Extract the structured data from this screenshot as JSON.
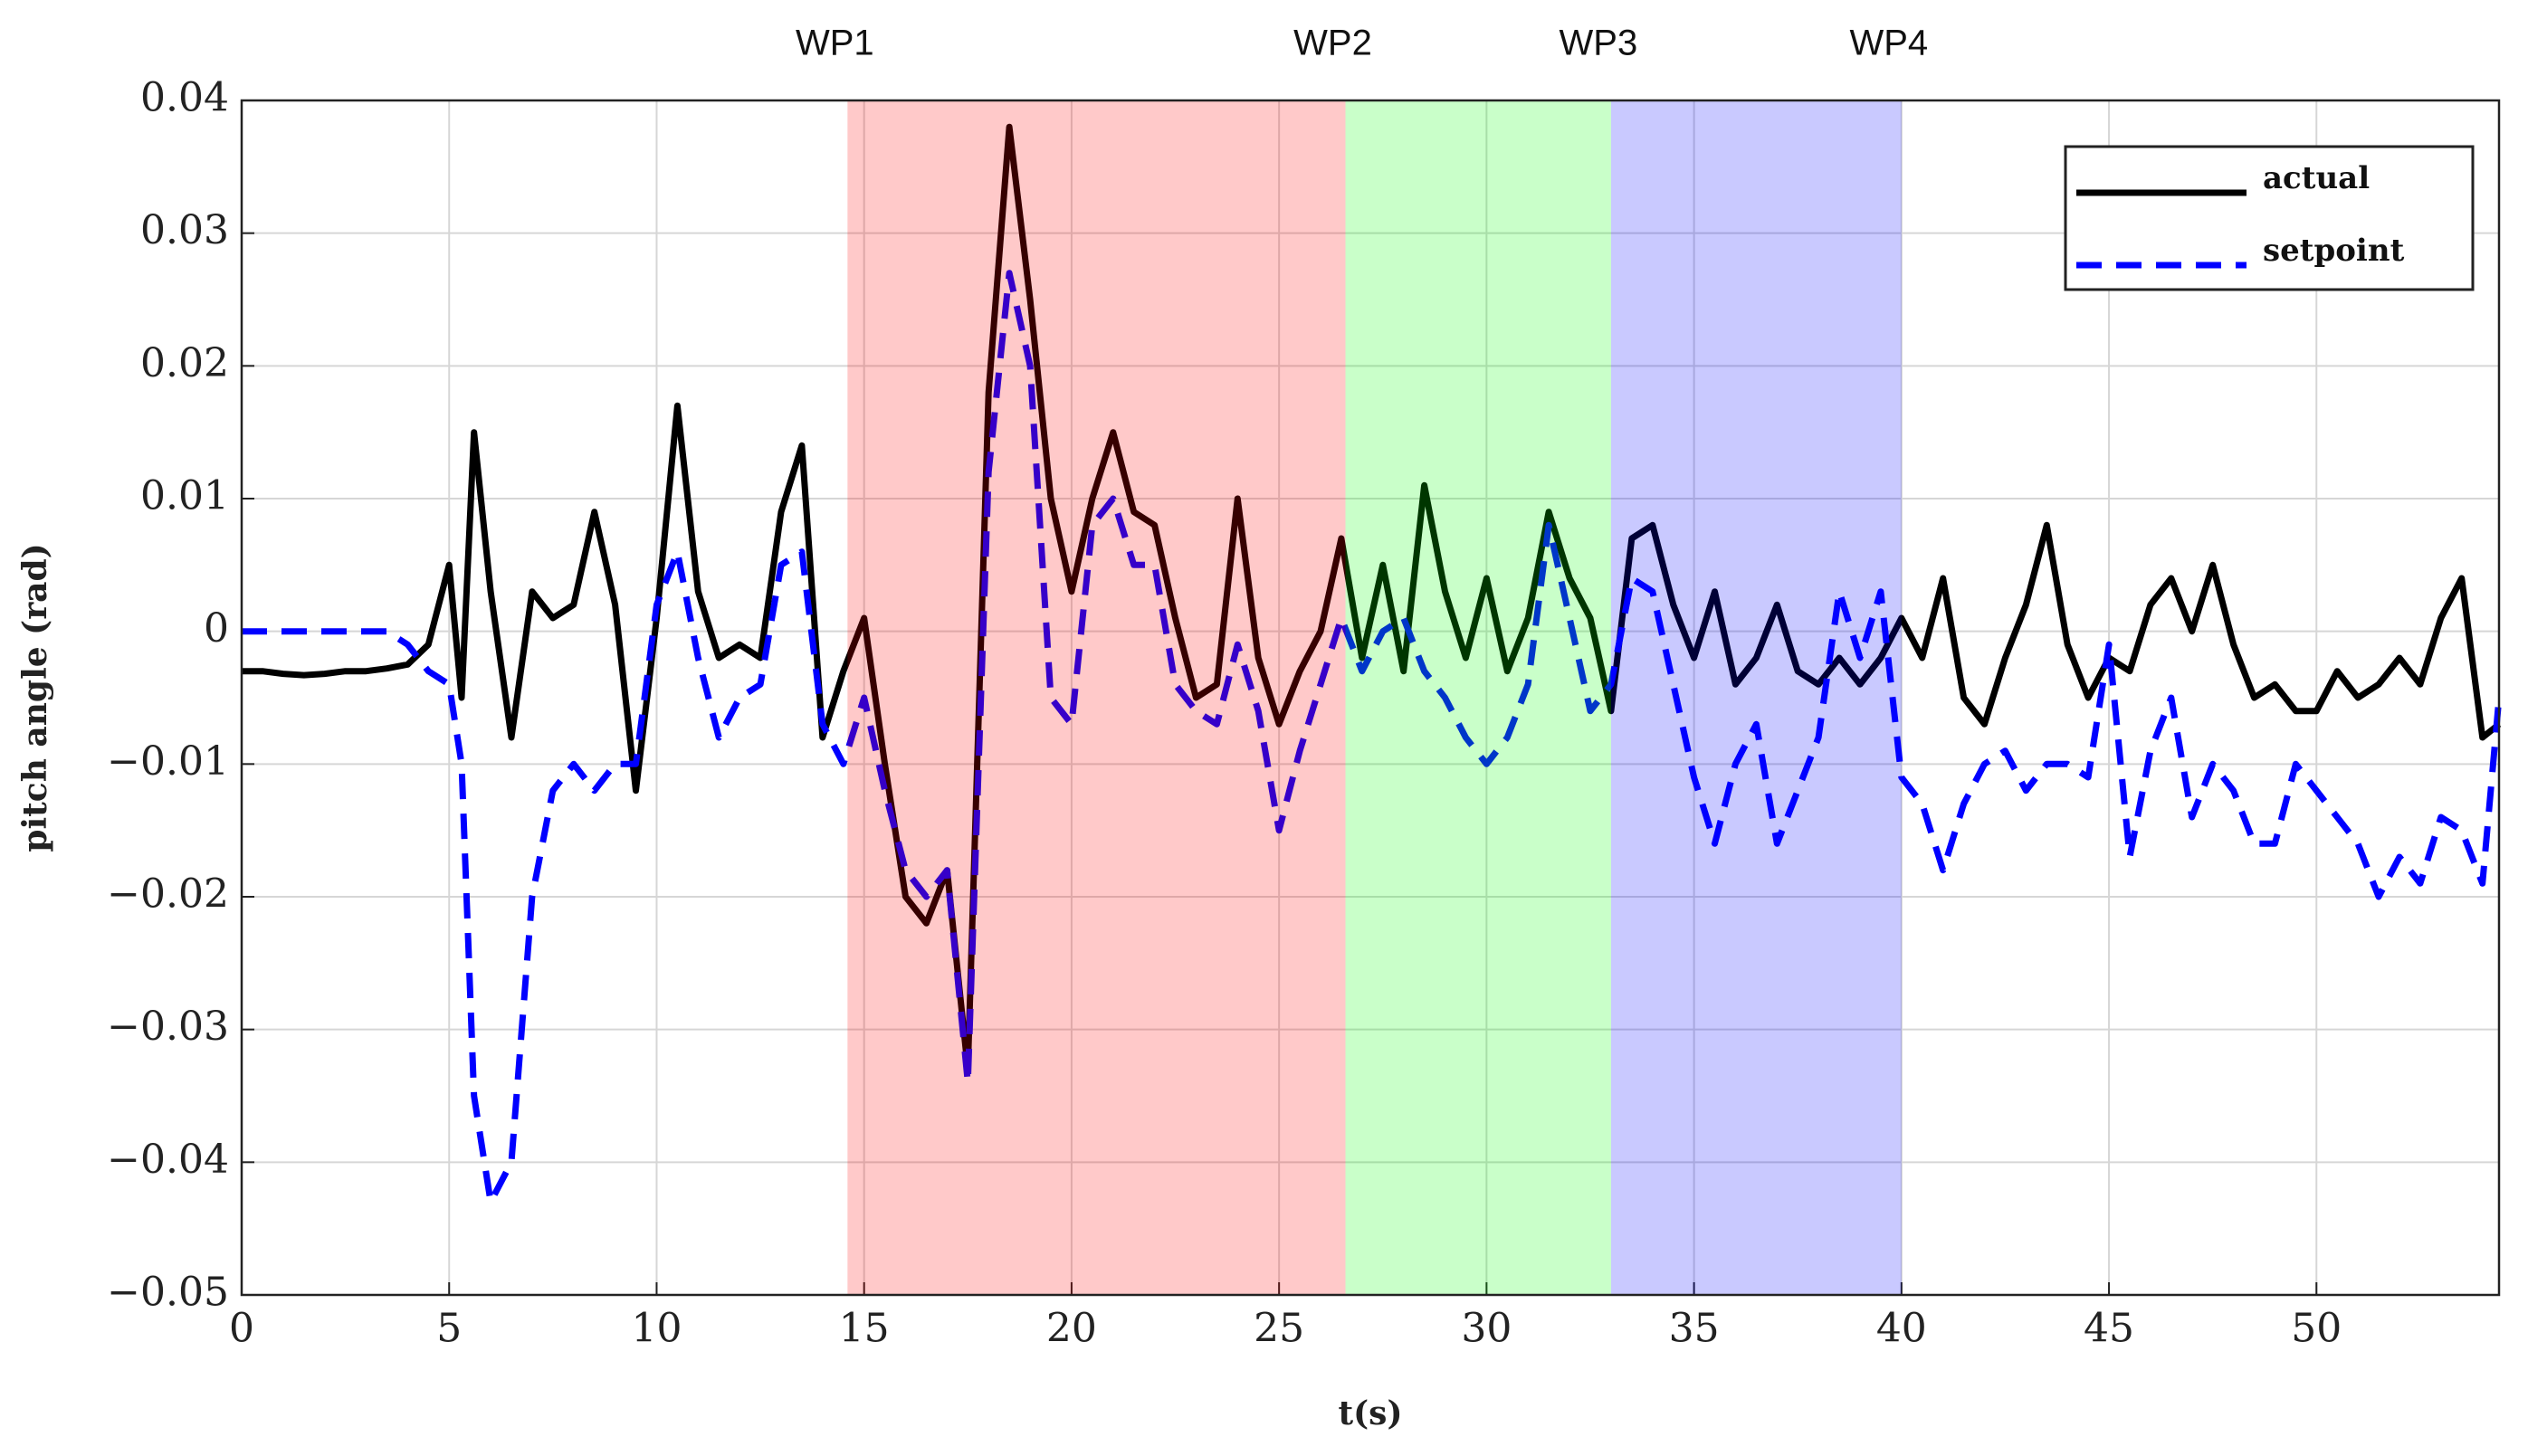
{
  "chart_data": {
    "type": "line",
    "xlabel": "t(s)",
    "ylabel": "pitch angle (rad)",
    "xlim": [
      0,
      54.4
    ],
    "ylim": [
      -0.05,
      0.04
    ],
    "xticks": [
      0,
      5,
      10,
      15,
      20,
      25,
      30,
      35,
      40,
      45,
      50
    ],
    "yticks": [
      {
        "value": -0.05,
        "label": "−0.05"
      },
      {
        "value": -0.04,
        "label": "−0.04"
      },
      {
        "value": -0.03,
        "label": "−0.03"
      },
      {
        "value": -0.02,
        "label": "−0.02"
      },
      {
        "value": -0.01,
        "label": "−0.01"
      },
      0,
      0.01,
      0.02,
      0.03,
      0.04
    ],
    "grid": true,
    "legend": "upper right",
    "waypoints": [
      {
        "label": "WP1",
        "x": 14.6
      },
      {
        "label": "WP2",
        "x": 26.6
      },
      {
        "label": "WP3",
        "x": 33
      },
      {
        "label": "WP4",
        "x": 40
      }
    ],
    "region_colors": [
      "#ff0000",
      "#00ff00",
      "#0000ff"
    ],
    "x": [
      0,
      0.5,
      1,
      1.5,
      2,
      2.5,
      3,
      3.5,
      4,
      4.5,
      5,
      5.3,
      5.6,
      6,
      6.5,
      7,
      7.5,
      8,
      8.5,
      9,
      9.5,
      10,
      10.5,
      11,
      11.5,
      12,
      12.5,
      13,
      13.5,
      14,
      14.5,
      15,
      15.5,
      16,
      16.5,
      17,
      17.5,
      18,
      18.5,
      19,
      19.5,
      20,
      20.5,
      21,
      21.5,
      22,
      22.5,
      23,
      23.5,
      24,
      24.5,
      25,
      25.5,
      26,
      26.5,
      27,
      27.5,
      28,
      28.5,
      29,
      29.5,
      30,
      30.5,
      31,
      31.5,
      32,
      32.5,
      33,
      33.5,
      34,
      34.5,
      35,
      35.5,
      36,
      36.5,
      37,
      37.5,
      38,
      38.5,
      39,
      39.5,
      40,
      40.5,
      41,
      41.5,
      42,
      42.5,
      43,
      43.5,
      44,
      44.5,
      45,
      45.5,
      46,
      46.5,
      47,
      47.5,
      48,
      48.5,
      49,
      49.5,
      50,
      50.5,
      51,
      51.5,
      52,
      52.5,
      53,
      53.5,
      54,
      54.4
    ],
    "series": [
      {
        "name": "actual",
        "color": "#000000",
        "dash": false,
        "values": [
          -0.003,
          -0.003,
          -0.0032,
          -0.0033,
          -0.0032,
          -0.003,
          -0.003,
          -0.0028,
          -0.0025,
          -0.001,
          0.005,
          -0.005,
          0.015,
          0.003,
          -0.008,
          0.003,
          0.001,
          0.002,
          0.009,
          0.002,
          -0.012,
          0.001,
          0.017,
          0.003,
          -0.002,
          -0.001,
          -0.002,
          0.009,
          0.014,
          -0.008,
          -0.003,
          0.001,
          -0.01,
          -0.02,
          -0.022,
          -0.018,
          -0.033,
          0.018,
          0.038,
          0.025,
          0.01,
          0.003,
          0.01,
          0.015,
          0.009,
          0.008,
          0.001,
          -0.005,
          -0.004,
          0.01,
          -0.002,
          -0.007,
          -0.003,
          0.0,
          0.007,
          -0.002,
          0.005,
          -0.003,
          0.011,
          0.003,
          -0.002,
          0.004,
          -0.003,
          0.001,
          0.009,
          0.004,
          0.001,
          -0.006,
          0.007,
          0.008,
          0.002,
          -0.002,
          0.003,
          -0.004,
          -0.002,
          0.002,
          -0.003,
          -0.004,
          -0.002,
          -0.004,
          -0.002,
          0.001,
          -0.002,
          0.004,
          -0.005,
          -0.007,
          -0.002,
          0.002,
          0.008,
          -0.001,
          -0.005,
          -0.002,
          -0.003,
          0.002,
          0.004,
          0.0,
          0.005,
          -0.001,
          -0.005,
          -0.004,
          -0.006,
          -0.006,
          -0.003,
          -0.005,
          -0.004,
          -0.002,
          -0.004,
          0.001,
          0.004,
          -0.008,
          -0.007
        ]
      },
      {
        "name": "setpoint",
        "color": "#0000ff",
        "dash": true,
        "values": [
          0,
          0,
          0,
          0,
          0,
          0,
          0,
          0,
          -0.001,
          -0.003,
          -0.004,
          -0.01,
          -0.035,
          -0.043,
          -0.04,
          -0.02,
          -0.012,
          -0.01,
          -0.012,
          -0.01,
          -0.01,
          0.002,
          0.006,
          -0.002,
          -0.008,
          -0.005,
          -0.004,
          0.005,
          0.006,
          -0.007,
          -0.01,
          -0.005,
          -0.012,
          -0.018,
          -0.02,
          -0.018,
          -0.034,
          0.012,
          0.027,
          0.02,
          -0.005,
          -0.007,
          0.008,
          0.01,
          0.005,
          0.005,
          -0.004,
          -0.006,
          -0.007,
          -0.001,
          -0.006,
          -0.015,
          -0.009,
          -0.004,
          0.001,
          -0.003,
          0.0,
          0.001,
          -0.003,
          -0.005,
          -0.008,
          -0.01,
          -0.008,
          -0.004,
          0.008,
          0.001,
          -0.006,
          -0.004,
          0.004,
          0.003,
          -0.004,
          -0.011,
          -0.016,
          -0.01,
          -0.007,
          -0.016,
          -0.012,
          -0.008,
          0.003,
          -0.002,
          0.003,
          -0.011,
          -0.013,
          -0.018,
          -0.013,
          -0.01,
          -0.009,
          -0.012,
          -0.01,
          -0.01,
          -0.011,
          -0.001,
          -0.017,
          -0.009,
          -0.005,
          -0.014,
          -0.01,
          -0.012,
          -0.016,
          -0.016,
          -0.01,
          -0.012,
          -0.014,
          -0.016,
          -0.02,
          -0.017,
          -0.019,
          -0.014,
          -0.015,
          -0.019,
          -0.005
        ]
      }
    ]
  }
}
